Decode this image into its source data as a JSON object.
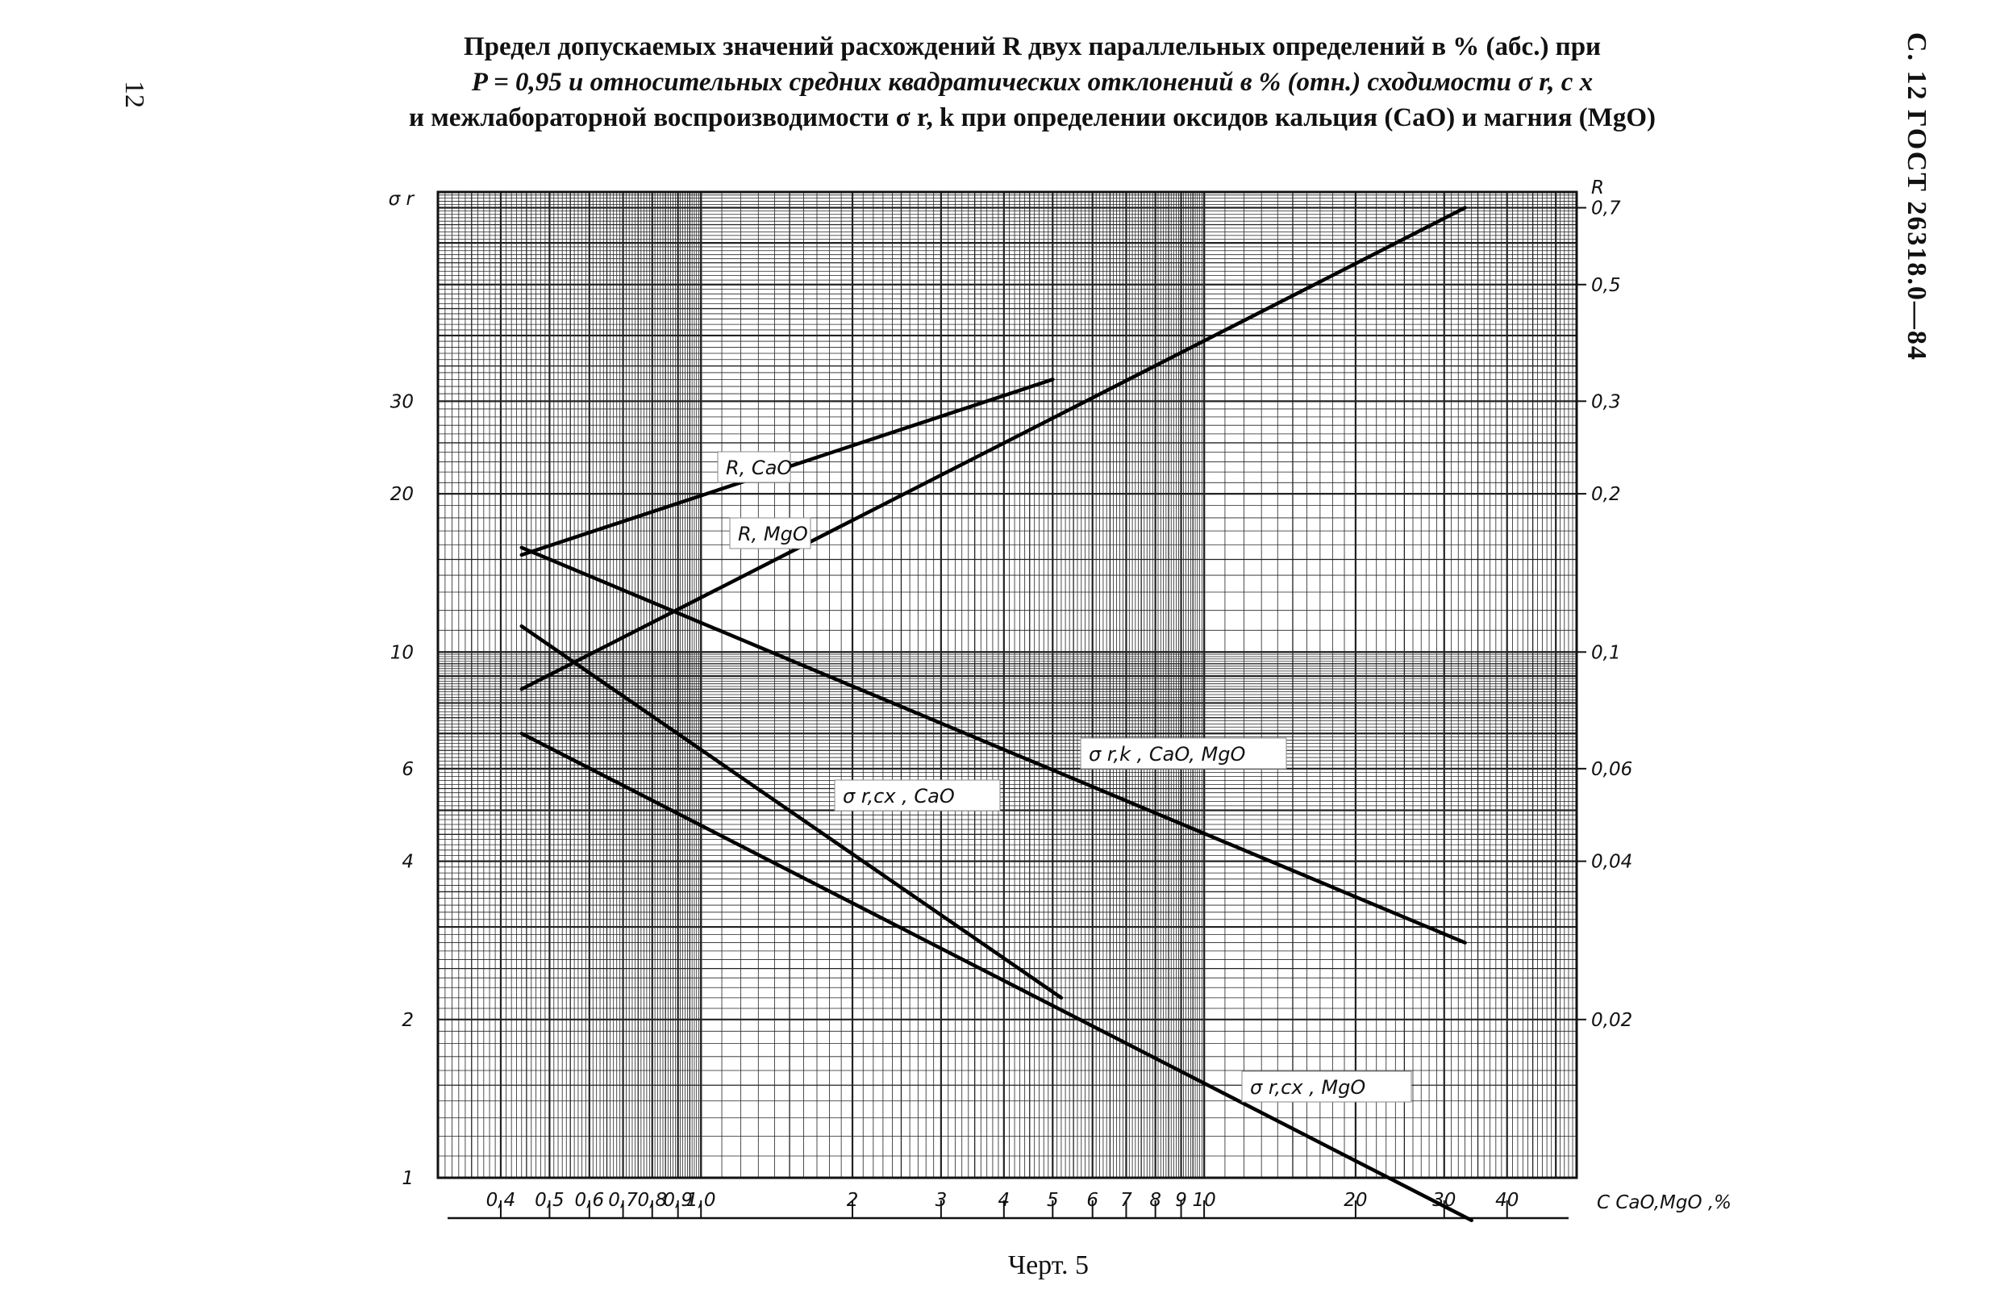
{
  "page": {
    "header_line1": "Предел допускаемых значений расхождений R двух параллельных определений в % (абс.) при",
    "header_line2": "P = 0,95 и относительных средних квадратических отклонений в % (отн.) сходимости σ r, c x",
    "header_line3": "и межлабораторной воспроизводимости σ r, k при определении оксидов кальция (CaO) и магния (MgO)",
    "page_number": "12",
    "side_header": "С. 12 ГОСТ 26318.0—84",
    "caption": "Черт. 5"
  },
  "chart_data": {
    "type": "line",
    "x_scale": "log",
    "y_scale": "log",
    "xlabel": "C CaO,MgO ,%",
    "ylabel_left": "σ r",
    "ylabel_right": "R",
    "xlim": [
      0.3,
      55
    ],
    "ylim_left": [
      1,
      75
    ],
    "ylim_right": [
      0.01,
      0.75
    ],
    "x_ticks": [
      {
        "v": 0.4,
        "label": "0,4"
      },
      {
        "v": 0.5,
        "label": "0,5"
      },
      {
        "v": 0.6,
        "label": "0,6"
      },
      {
        "v": 0.7,
        "label": "0,7"
      },
      {
        "v": 0.8,
        "label": "0,8"
      },
      {
        "v": 0.9,
        "label": "0,9"
      },
      {
        "v": 1.0,
        "label": "1,0"
      },
      {
        "v": 2,
        "label": "2"
      },
      {
        "v": 3,
        "label": "3"
      },
      {
        "v": 4,
        "label": "4"
      },
      {
        "v": 5,
        "label": "5"
      },
      {
        "v": 6,
        "label": "6"
      },
      {
        "v": 7,
        "label": "7"
      },
      {
        "v": 8,
        "label": "8"
      },
      {
        "v": 9,
        "label": "9"
      },
      {
        "v": 10,
        "label": "10"
      },
      {
        "v": 20,
        "label": "20"
      },
      {
        "v": 30,
        "label": "30"
      },
      {
        "v": 40,
        "label": "40"
      }
    ],
    "y_ticks_left": [
      {
        "v": 1,
        "label": "1"
      },
      {
        "v": 2,
        "label": "2"
      },
      {
        "v": 4,
        "label": "4"
      },
      {
        "v": 6,
        "label": "6"
      },
      {
        "v": 10,
        "label": "10"
      },
      {
        "v": 20,
        "label": "20"
      },
      {
        "v": 30,
        "label": "30"
      }
    ],
    "y_ticks_right": [
      {
        "v": 0.02,
        "label": "0,02"
      },
      {
        "v": 0.04,
        "label": "0,04"
      },
      {
        "v": 0.06,
        "label": "0,06"
      },
      {
        "v": 0.1,
        "label": "0,1"
      },
      {
        "v": 0.2,
        "label": "0,2"
      },
      {
        "v": 0.3,
        "label": "0,3"
      },
      {
        "v": 0.5,
        "label": "0,5"
      },
      {
        "v": 0.7,
        "label": "0,7"
      }
    ],
    "grid": true,
    "series": [
      {
        "name": "R, CaO",
        "axis": "right",
        "x": [
          0.44,
          5.0
        ],
        "y": [
          0.153,
          0.33
        ]
      },
      {
        "name": "R, MgO",
        "axis": "right",
        "x": [
          0.44,
          33
        ],
        "y": [
          0.085,
          0.7
        ]
      },
      {
        "name": "σ r,k , CaO, MgO",
        "axis": "left",
        "x": [
          0.44,
          33
        ],
        "y": [
          15.8,
          2.8
        ]
      },
      {
        "name": "σ r,cx , CaO",
        "axis": "left",
        "x": [
          0.44,
          5.2
        ],
        "y": [
          11.2,
          2.2
        ]
      },
      {
        "name": "σ r,cx , MgO",
        "axis": "left",
        "x": [
          0.44,
          34
        ],
        "y": [
          7.0,
          0.83
        ]
      }
    ]
  }
}
